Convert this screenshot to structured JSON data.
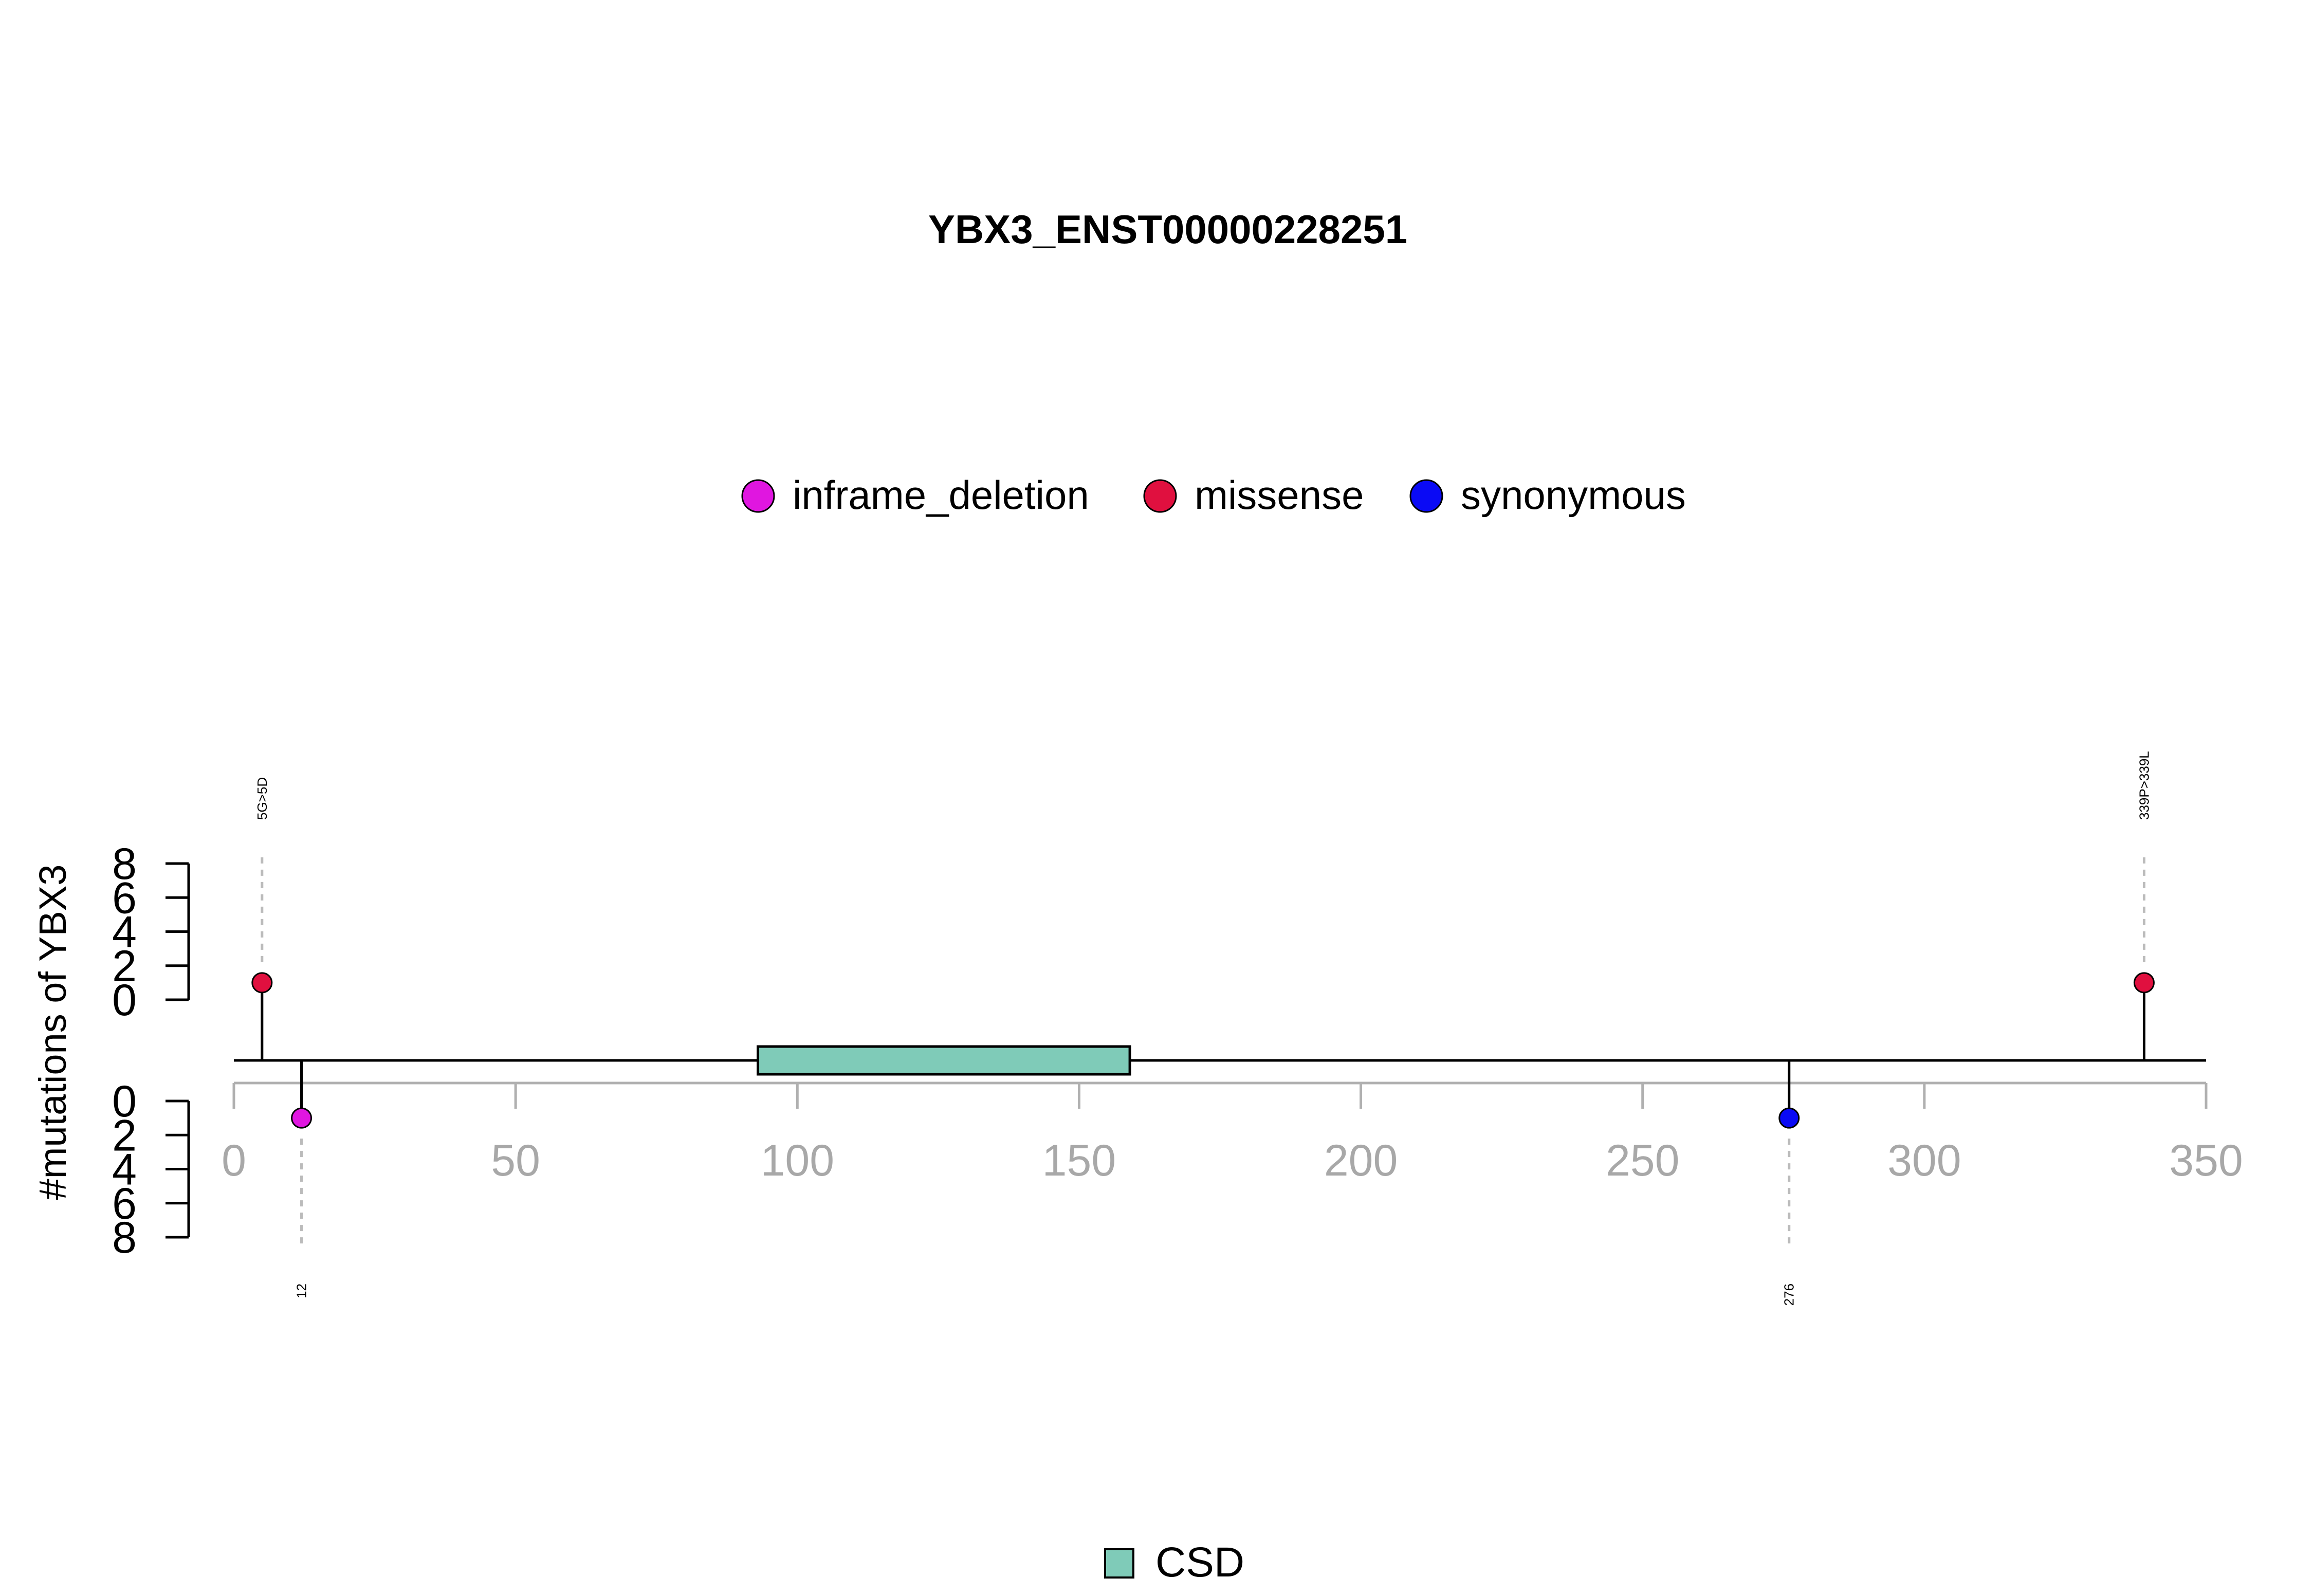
{
  "chart_data": {
    "type": "lollipop",
    "title": "YBX3_ENST00000228251",
    "ylabel": "#mutations of YBX3",
    "xlim": [
      0,
      350
    ],
    "x_ticks": [
      0,
      50,
      100,
      150,
      200,
      250,
      300,
      350
    ],
    "y_ticks": [
      0,
      2,
      4,
      6,
      8
    ],
    "ylim": [
      0,
      8
    ],
    "legend": {
      "placement": "top-center",
      "entries": [
        {
          "label": "inframe_deletion",
          "color": "#E016E0"
        },
        {
          "label": "missense",
          "color": "#E0103F"
        },
        {
          "label": "synonymous",
          "color": "#0A0AF5"
        }
      ]
    },
    "domain_legend": {
      "placement": "bottom-center",
      "entries": [
        {
          "label": "CSD",
          "color": "#7FCBB8"
        }
      ]
    },
    "domains": [
      {
        "name": "CSD",
        "start": 93,
        "end": 159,
        "color": "#7FCBB8"
      }
    ],
    "mutations": [
      {
        "position": 5,
        "count": 1,
        "type": "missense",
        "side": "top",
        "label": "5G>5D"
      },
      {
        "position": 12,
        "count": 1,
        "type": "inframe_deletion",
        "side": "bottom",
        "label": "12"
      },
      {
        "position": 276,
        "count": 1,
        "type": "synonymous",
        "side": "bottom",
        "label": "276"
      },
      {
        "position": 339,
        "count": 1,
        "type": "missense",
        "side": "top",
        "label": "339P>339L"
      }
    ]
  }
}
